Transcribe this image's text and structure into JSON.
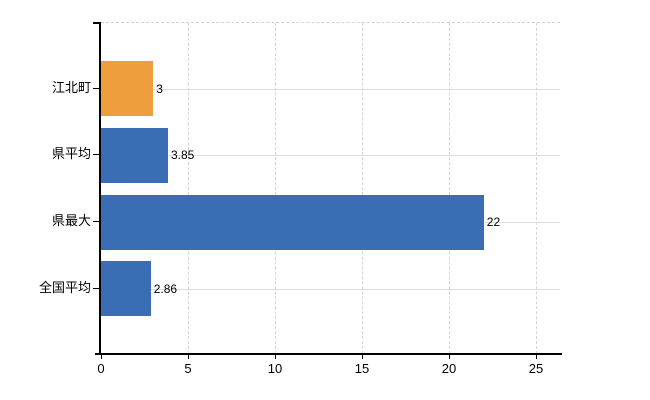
{
  "chart_data": {
    "type": "bar",
    "orientation": "horizontal",
    "title": "",
    "categories": [
      "江北町",
      "県平均",
      "県最大",
      "全国平均"
    ],
    "values": [
      3,
      3.85,
      22,
      2.86
    ],
    "value_labels": [
      "3",
      "3.85",
      "22",
      "2.86"
    ],
    "bar_colors": [
      "#EE9E3C",
      "#3A6DB3",
      "#3A6DB3",
      "#3A6DB3"
    ],
    "highlight_category": "江北町",
    "xlabel": "",
    "ylabel": "",
    "xlim": [
      0,
      26.4
    ],
    "xticks": [
      0,
      5,
      10,
      15,
      20,
      25
    ],
    "xtick_labels": [
      "0",
      "5",
      "10",
      "15",
      "20",
      "25"
    ],
    "grid": {
      "horizontal_lines": "solid, one per category row",
      "vertical_lines": "dashed, at each x tick",
      "top_border": "dashed"
    },
    "legend_position": "none",
    "colors": {
      "accent_orange": "#EE9E3C",
      "series_blue": "#3A6DB3",
      "axis": "#000000",
      "grid_horizontal": "#dbe0da",
      "grid_vertical": "#d6d2da",
      "background": "#ffffff"
    }
  }
}
